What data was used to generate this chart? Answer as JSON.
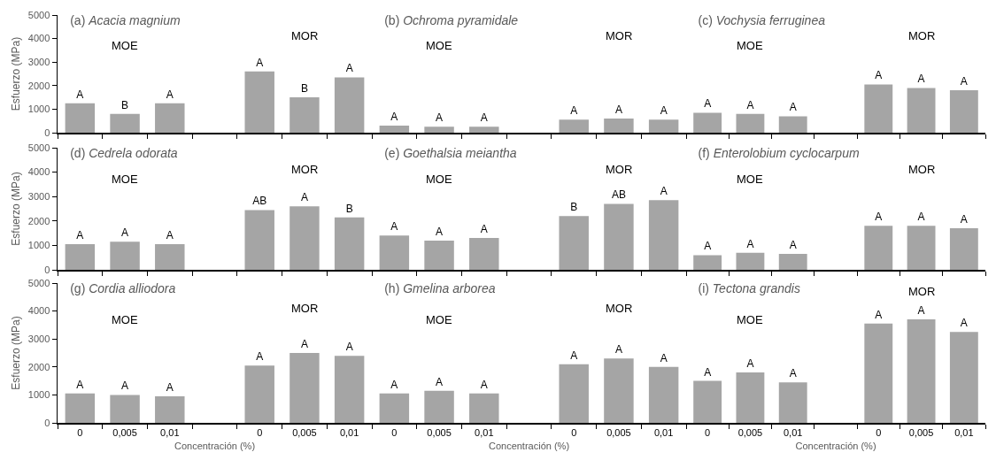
{
  "chart_data": [
    {
      "type": "bar",
      "title": "(a) Acacia magnium",
      "ylabel": "Esfuerzo (MPa)",
      "categories": [
        "0",
        "0,005",
        "0,01",
        null,
        "0",
        "0,005",
        "0,01"
      ],
      "values": [
        1250,
        800,
        1250,
        null,
        2600,
        1500,
        2350
      ],
      "value_labels": [
        "A",
        "B",
        "A",
        null,
        "A",
        "B",
        "A"
      ],
      "color": "#a5a5a5",
      "ylim": [
        0,
        5000
      ],
      "yticks": [
        0,
        1000,
        2000,
        3000,
        4000,
        5000
      ],
      "grid": false,
      "tick_labels": "y",
      "annotations": [
        "MOE",
        "MOR"
      ]
    },
    {
      "type": "bar",
      "title": "(b) Ochroma pyramidale",
      "categories": [
        "0",
        "0,005",
        "0,01",
        null,
        "0",
        "0,005",
        "0,01"
      ],
      "values": [
        300,
        250,
        250,
        null,
        550,
        600,
        550
      ],
      "value_labels": [
        "A",
        "A",
        "A",
        null,
        "A",
        "A",
        "A"
      ],
      "color": "#a5a5a5",
      "ylim": [
        0,
        5000
      ],
      "yticks": [
        0,
        1000,
        2000,
        3000,
        4000,
        5000
      ],
      "grid": false,
      "tick_labels": false,
      "annotations": [
        "MOE",
        "MOR"
      ]
    },
    {
      "type": "bar",
      "title": "(c) Vochysia ferruginea",
      "categories": [
        "0",
        "0,005",
        "0,01",
        null,
        "0",
        "0,005",
        "0,01"
      ],
      "values": [
        850,
        800,
        700,
        null,
        2050,
        1900,
        1800
      ],
      "value_labels": [
        "A",
        "A",
        "A",
        null,
        "A",
        "A",
        "A"
      ],
      "color": "#a5a5a5",
      "ylim": [
        0,
        5000
      ],
      "yticks": [
        0,
        1000,
        2000,
        3000,
        4000,
        5000
      ],
      "grid": false,
      "tick_labels": false,
      "annotations": [
        "MOE",
        "MOR"
      ]
    },
    {
      "type": "bar",
      "title": "(d) Cedrela odorata",
      "ylabel": "Esfuerzo (MPa)",
      "categories": [
        "0",
        "0,005",
        "0,01",
        null,
        "0",
        "0,005",
        "0,01"
      ],
      "values": [
        1050,
        1150,
        1050,
        null,
        2450,
        2600,
        2150
      ],
      "value_labels": [
        "A",
        "A",
        "A",
        null,
        "AB",
        "A",
        "B"
      ],
      "color": "#a5a5a5",
      "ylim": [
        0,
        5000
      ],
      "yticks": [
        0,
        1000,
        2000,
        3000,
        4000,
        5000
      ],
      "grid": false,
      "tick_labels": "y",
      "annotations": [
        "MOE",
        "MOR"
      ]
    },
    {
      "type": "bar",
      "title": "(e) Goethalsia meiantha",
      "categories": [
        "0",
        "0,005",
        "0,01",
        null,
        "0",
        "0,005",
        "0,01"
      ],
      "values": [
        1400,
        1200,
        1300,
        null,
        2200,
        2700,
        2850
      ],
      "value_labels": [
        "A",
        "A",
        "A",
        null,
        "B",
        "AB",
        "A"
      ],
      "color": "#a5a5a5",
      "ylim": [
        0,
        5000
      ],
      "yticks": [
        0,
        1000,
        2000,
        3000,
        4000,
        5000
      ],
      "grid": false,
      "tick_labels": false,
      "annotations": [
        "MOE",
        "MOR"
      ]
    },
    {
      "type": "bar",
      "title": "(f) Enterolobium cyclocarpum",
      "categories": [
        "0",
        "0,005",
        "0,01",
        null,
        "0",
        "0,005",
        "0,01"
      ],
      "values": [
        600,
        700,
        650,
        null,
        1800,
        1800,
        1700
      ],
      "value_labels": [
        "A",
        "A",
        "A",
        null,
        "A",
        "A",
        "A"
      ],
      "color": "#a5a5a5",
      "ylim": [
        0,
        5000
      ],
      "yticks": [
        0,
        1000,
        2000,
        3000,
        4000,
        5000
      ],
      "grid": false,
      "tick_labels": false,
      "annotations": [
        "MOE",
        "MOR"
      ]
    },
    {
      "type": "bar",
      "title": "(g) Cordia alliodora",
      "ylabel": "Esfuerzo (MPa)",
      "xlabel": "Concentración (%)",
      "categories": [
        "0",
        "0,005",
        "0,01",
        null,
        "0",
        "0,005",
        "0,01"
      ],
      "values": [
        1050,
        1000,
        950,
        null,
        2050,
        2500,
        2400
      ],
      "value_labels": [
        "A",
        "A",
        "A",
        null,
        "A",
        "A",
        "A"
      ],
      "color": "#a5a5a5",
      "ylim": [
        0,
        5000
      ],
      "yticks": [
        0,
        1000,
        2000,
        3000,
        4000,
        5000
      ],
      "grid": false,
      "annotations": [
        "MOE",
        "MOR"
      ]
    },
    {
      "type": "bar",
      "title": "(h) Gmelina arborea",
      "xlabel": "Concentración (%)",
      "categories": [
        "0",
        "0,005",
        "0,01",
        null,
        "0",
        "0,005",
        "0,01"
      ],
      "values": [
        1050,
        1150,
        1050,
        null,
        2100,
        2300,
        2000
      ],
      "value_labels": [
        "A",
        "A",
        "A",
        null,
        "A",
        "A",
        "A"
      ],
      "color": "#a5a5a5",
      "ylim": [
        0,
        5000
      ],
      "yticks": [
        0,
        1000,
        2000,
        3000,
        4000,
        5000
      ],
      "grid": false,
      "tick_labels": "x",
      "annotations": [
        "MOE",
        "MOR"
      ]
    },
    {
      "type": "bar",
      "title": "(i) Tectona grandis",
      "xlabel": "Concentración (%)",
      "categories": [
        "0",
        "0,005",
        "0,01",
        null,
        "0",
        "0,005",
        "0,01"
      ],
      "values": [
        1500,
        1800,
        1450,
        null,
        3550,
        3700,
        3250
      ],
      "value_labels": [
        "A",
        "A",
        "A",
        null,
        "A",
        "A",
        "A"
      ],
      "color": "#a5a5a5",
      "ylim": [
        0,
        5000
      ],
      "yticks": [
        0,
        1000,
        2000,
        3000,
        4000,
        5000
      ],
      "grid": false,
      "tick_labels": "x",
      "annotations": [
        "MOE",
        "MOR"
      ]
    }
  ]
}
